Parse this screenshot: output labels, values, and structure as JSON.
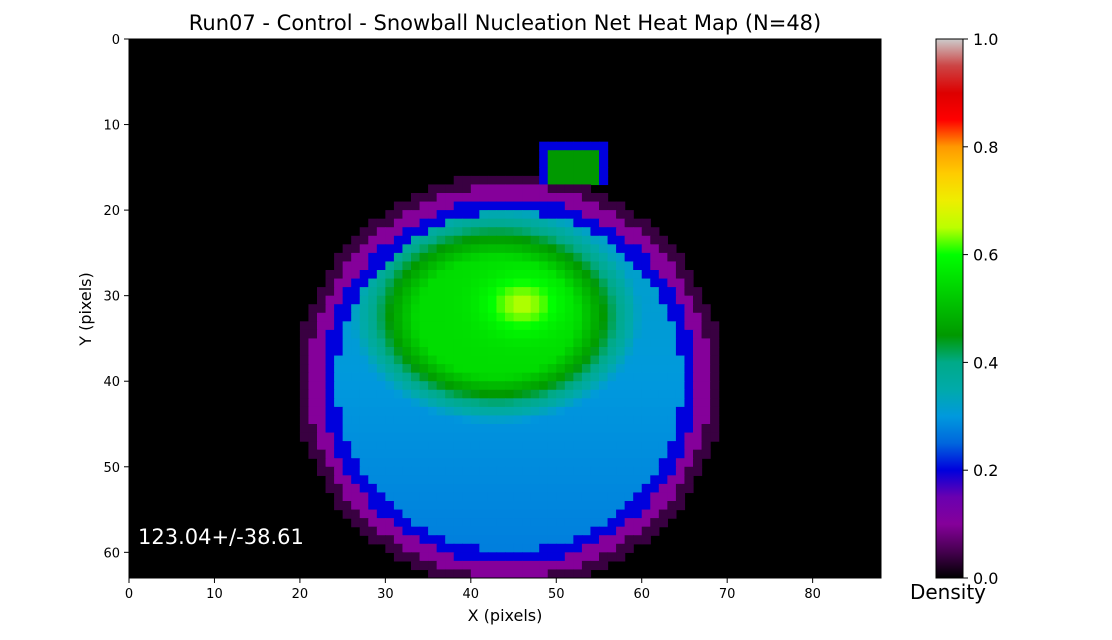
{
  "chart_data": {
    "type": "heatmap",
    "title": "Run07 - Control - Snowball Nucleation Net Heat Map (N=48)",
    "xlabel": "X (pixels)",
    "ylabel": "Y (pixels)",
    "xlim": [
      0,
      88
    ],
    "ylim": [
      63,
      0
    ],
    "x_ticks": [
      "0",
      "10",
      "20",
      "30",
      "40",
      "50",
      "60",
      "70",
      "80"
    ],
    "y_ticks": [
      "0",
      "10",
      "20",
      "30",
      "40",
      "50",
      "60"
    ],
    "annotation": "123.04+/-38.61",
    "colorbar": {
      "label": "Density",
      "colormap": "nipy_spectral",
      "range": [
        0.0,
        1.0
      ],
      "ticks": [
        "0.0",
        "0.2",
        "0.4",
        "0.6",
        "0.8",
        "1.0"
      ]
    },
    "background_color": "#000000",
    "regions": [
      {
        "name": "main blob",
        "center": [
          43,
          41
        ],
        "extent_x": [
          21,
          68
        ],
        "extent_y": [
          17,
          63
        ],
        "edge_density": 0.1,
        "interior_density": 0.3
      },
      {
        "name": "green core",
        "center": [
          43,
          33
        ],
        "extent_x": [
          26,
          60
        ],
        "extent_y": [
          20,
          45
        ],
        "density": 0.55
      },
      {
        "name": "peak",
        "center": [
          46,
          31
        ],
        "density": 0.65
      },
      {
        "name": "small spot",
        "center": [
          52,
          14.5
        ],
        "extent_x": [
          48,
          56
        ],
        "extent_y": [
          12,
          17
        ],
        "density": 0.45
      }
    ]
  }
}
